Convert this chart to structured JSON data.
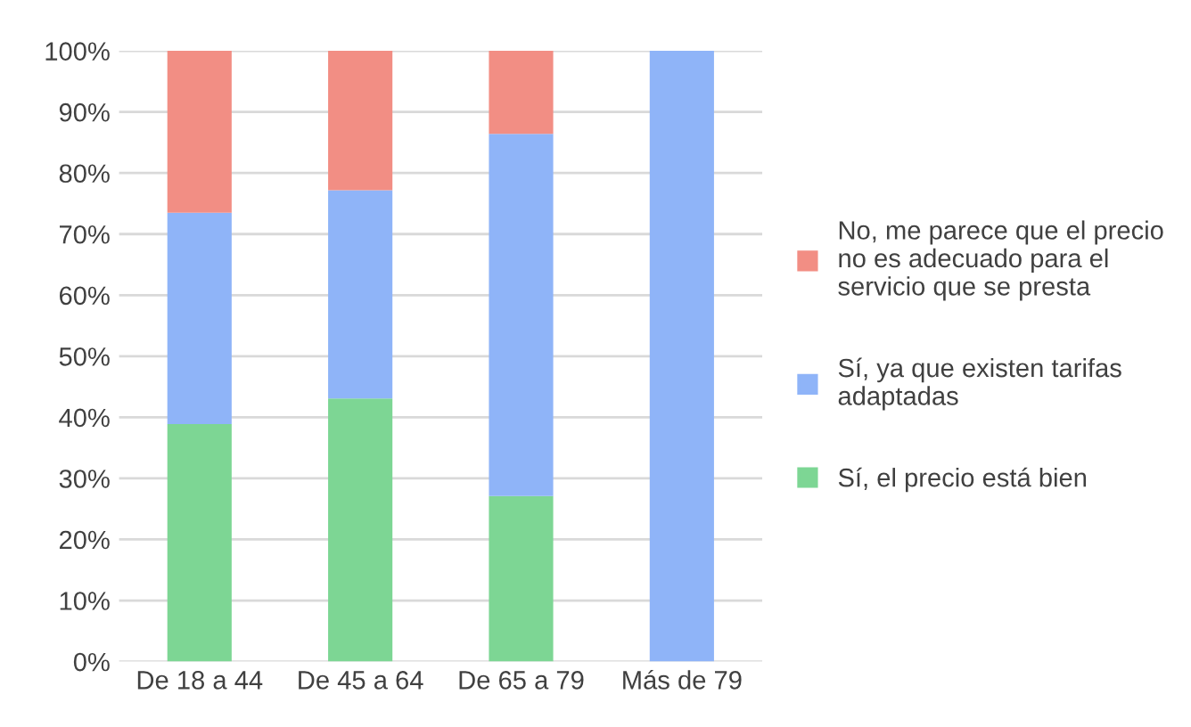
{
  "chart_data": {
    "type": "bar",
    "stacked": true,
    "categories": [
      "De 18 a 44",
      "De 45 a 64",
      "De 65 a 79",
      "Más de 79"
    ],
    "series": [
      {
        "name": "Sí, el precio está bien",
        "color": "#7dd694",
        "values": [
          38.9,
          43.1,
          27.1,
          0
        ]
      },
      {
        "name": "Sí, ya que existen tarifas adaptadas",
        "color": "#8fb4f8",
        "values": [
          34.6,
          34.1,
          59.3,
          100
        ]
      },
      {
        "name": "No, me parece que el precio no es adecuado para el servicio que se presta",
        "color": "#f28e84",
        "values": [
          26.5,
          22.8,
          13.6,
          0
        ]
      }
    ],
    "ylim": [
      0,
      100
    ],
    "yticks": [
      {
        "value": 0,
        "label": "0%"
      },
      {
        "value": 10,
        "label": "10%"
      },
      {
        "value": 20,
        "label": "20%"
      },
      {
        "value": 30,
        "label": "30%"
      },
      {
        "value": 40,
        "label": "40%"
      },
      {
        "value": 50,
        "label": "50%"
      },
      {
        "value": 60,
        "label": "60%"
      },
      {
        "value": 70,
        "label": "70%"
      },
      {
        "value": 80,
        "label": "80%"
      },
      {
        "value": 90,
        "label": "90%"
      },
      {
        "value": 100,
        "label": "100%"
      }
    ],
    "grid": "y",
    "legend": "right"
  }
}
